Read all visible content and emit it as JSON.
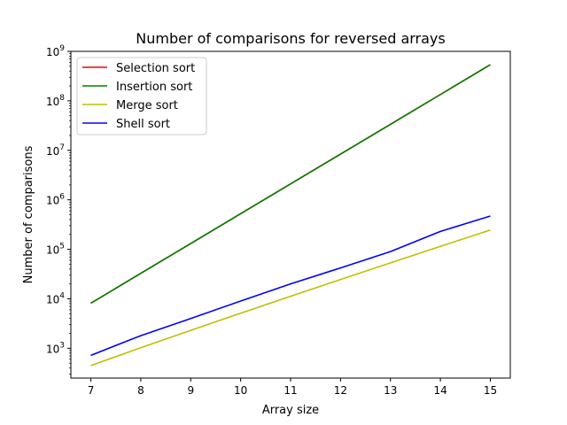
{
  "chart_data": {
    "type": "line",
    "title": "Number of comparisons for reversed arrays",
    "xlabel": "Array size",
    "ylabel": "Number of comparisons",
    "yscale": "log",
    "xlim": [
      6.6,
      15.4
    ],
    "ylim": [
      250,
      1000000000
    ],
    "x_ticks": [
      7,
      8,
      9,
      10,
      11,
      12,
      13,
      14,
      15
    ],
    "y_ticks": [
      {
        "value": 1000,
        "base": "10",
        "exp": "3"
      },
      {
        "value": 10000,
        "base": "10",
        "exp": "4"
      },
      {
        "value": 100000,
        "base": "10",
        "exp": "5"
      },
      {
        "value": 1000000,
        "base": "10",
        "exp": "6"
      },
      {
        "value": 10000000,
        "base": "10",
        "exp": "7"
      },
      {
        "value": 100000000,
        "base": "10",
        "exp": "8"
      },
      {
        "value": 1000000000,
        "base": "10",
        "exp": "9"
      }
    ],
    "grid": false,
    "legend_position": "upper-left",
    "x": [
      7,
      8,
      9,
      10,
      11,
      12,
      13,
      14,
      15
    ],
    "series": [
      {
        "name": "Selection sort",
        "color": "#ff0000",
        "values": [
          8128,
          32640,
          130816,
          523776,
          2096128,
          8386560,
          33550336,
          134209536,
          536854528
        ]
      },
      {
        "name": "Insertion sort",
        "color": "#008000",
        "values": [
          8128,
          32640,
          130816,
          523776,
          2096128,
          8386560,
          33550336,
          134209536,
          536854528
        ]
      },
      {
        "name": "Merge sort",
        "color": "#bfbf00",
        "values": [
          448,
          1024,
          2304,
          5120,
          11264,
          24576,
          53248,
          114688,
          245760
        ]
      },
      {
        "name": "Shell sort",
        "color": "#0000ff",
        "values": [
          720,
          1800,
          4000,
          9000,
          20000,
          42000,
          90000,
          230000,
          470000
        ]
      }
    ]
  }
}
